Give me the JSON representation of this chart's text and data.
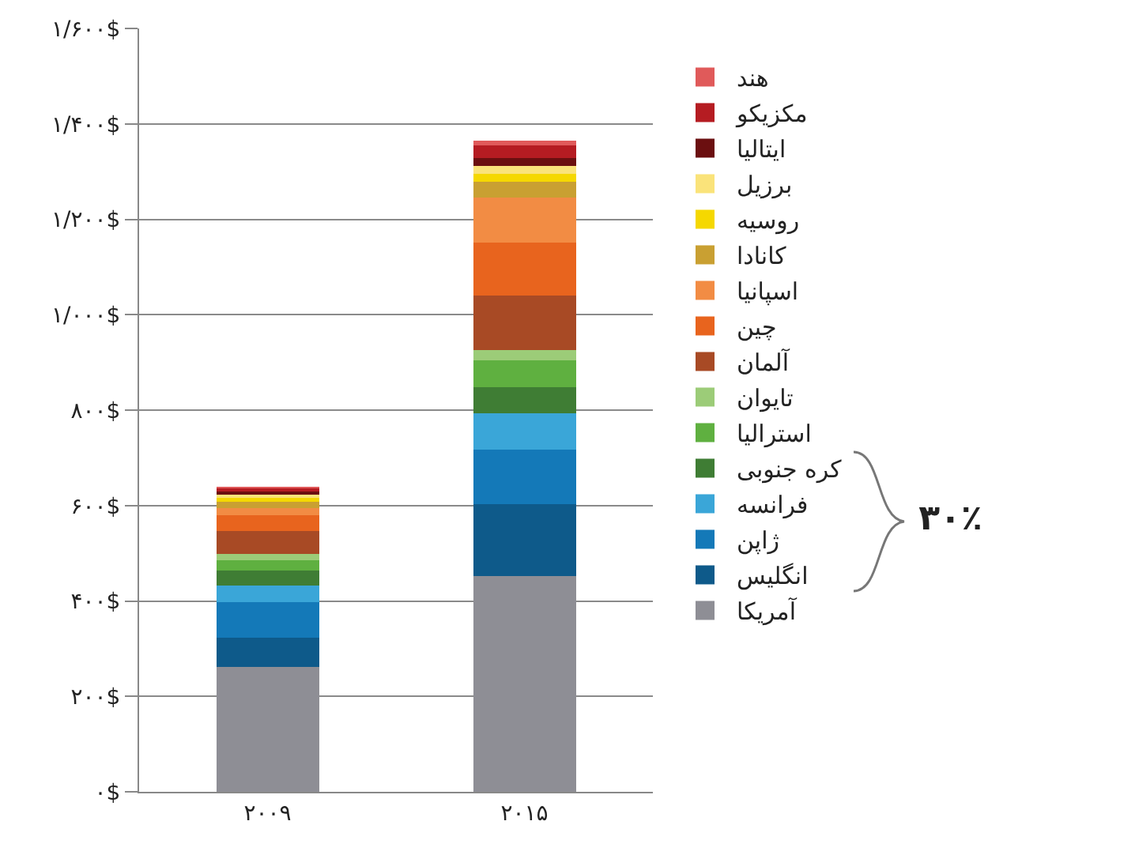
{
  "chart_data": {
    "type": "bar",
    "stacked": true,
    "categories": [
      "۲۰۰۹",
      "۲۰۱۵"
    ],
    "series": [
      {
        "name": "آمریکا",
        "color": "#8e8e95",
        "values": [
          262,
          452
        ]
      },
      {
        "name": "انگلیس",
        "color": "#0e5a8a",
        "values": [
          61,
          151
        ]
      },
      {
        "name": "ژاپن",
        "color": "#1479b8",
        "values": [
          74,
          115
        ]
      },
      {
        "name": "فرانسه",
        "color": "#3aa6d8",
        "values": [
          36,
          75
        ]
      },
      {
        "name": "کره جنوبی",
        "color": "#3f7d34",
        "values": [
          30,
          55
        ]
      },
      {
        "name": "استرالیا",
        "color": "#5fb040",
        "values": [
          22,
          56
        ]
      },
      {
        "name": "تایوان",
        "color": "#9ccc78",
        "values": [
          13,
          22
        ]
      },
      {
        "name": "آلمان",
        "color": "#a84a25",
        "values": [
          49,
          115
        ]
      },
      {
        "name": "چین",
        "color": "#e8641e",
        "values": [
          32,
          110
        ]
      },
      {
        "name": "اسپانیا",
        "color": "#f28c44",
        "values": [
          16,
          94
        ]
      },
      {
        "name": "کانادا",
        "color": "#c9a032",
        "values": [
          13,
          33
        ]
      },
      {
        "name": "روسیه",
        "color": "#f5d800",
        "values": [
          9,
          17
        ]
      },
      {
        "name": "برزیل",
        "color": "#fae37a",
        "values": [
          6,
          16
        ]
      },
      {
        "name": "ایتالیا",
        "color": "#6b0f10",
        "values": [
          7,
          17
        ]
      },
      {
        "name": "مکزیکو",
        "color": "#b51c22",
        "values": [
          7,
          27
        ]
      },
      {
        "name": "هند",
        "color": "#e05a5a",
        "values": [
          2,
          9
        ]
      }
    ],
    "ylim": [
      0,
      1600
    ],
    "yticks": [
      {
        "value": 0,
        "label": "۰$"
      },
      {
        "value": 200,
        "label": "۲۰۰$"
      },
      {
        "value": 400,
        "label": "۴۰۰$"
      },
      {
        "value": 600,
        "label": "۶۰۰$"
      },
      {
        "value": 800,
        "label": "۸۰۰$"
      },
      {
        "value": 1000,
        "label": "۱/۰۰۰$"
      },
      {
        "value": 1200,
        "label": "۱/۲۰۰$"
      },
      {
        "value": 1400,
        "label": "۱/۴۰۰$"
      },
      {
        "value": 1600,
        "label": "۱/۶۰۰$"
      }
    ],
    "grid": "y",
    "legend": "right",
    "annotations": [
      "۳۰٪"
    ]
  }
}
